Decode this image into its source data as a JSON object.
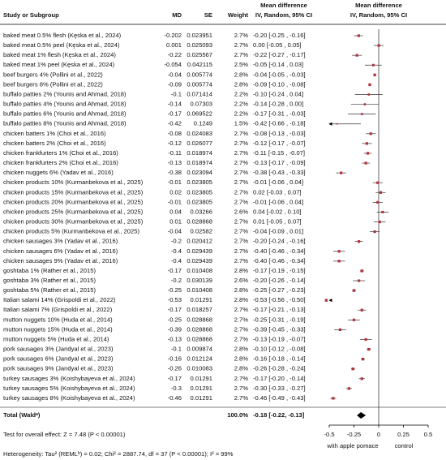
{
  "chart_data": {
    "type": "forest",
    "headers": {
      "study": "Study or Subgroup",
      "md": "MD",
      "se": "SE",
      "weight": "Weight",
      "ci_title": "Mean difference",
      "ci_sub": "IV, Random, 95% CI",
      "plot_title": "Mean difference",
      "plot_sub": "IV, Random, 95% CI"
    },
    "studies": [
      "baked meat 0.5% flesh (Kęska et al., 2024)",
      "baked meat 0.5% peel (Kęska et al., 2024)",
      "baked meat 1% flesh (Kęska et al., 2024)",
      "baked meat 1% peel (Kęska et al., 2024)",
      "beef burgers 4% (Pollini et al., 2022)",
      "beef burgers 8% (Pollini et al., 2022)",
      "buffalo patties 2% (Younis and Ahmad, 2018)",
      "buffalo patties 4% (Younis and Ahmad, 2018)",
      "buffalo patties 6% (Younis and Ahmad, 2018)",
      "buffalo patties 8% (Younis and Ahmad, 2018)",
      "chicken batters 1% (Choi et al., 2016)",
      "chicken batters 2% (Choi et al., 2016)",
      "chicken frankfurters 1% (Choi et al., 2016)",
      "chicken frankfurters 2% (Choi et al., 2016)",
      "chicken nuggets 6% (Yadav et al., 2016)",
      "chicken products 10% (Kurmanbekova et al., 2025)",
      "chicken products 15% (Kurmanbekova et al., 2025)",
      "chicken products 20% (Kurmanbekova et al., 2025)",
      "chicken products 25% (Kurmanbekova et al., 2025)",
      "chicken products 30% (Kurmanbekova et al., 2025)",
      "chicken products 5% (Kurmanbekova et al., 2025)",
      "chicken sausages 3% (Yadav et al., 2016)",
      "chicken sausages 6% (Yadav et al., 2016)",
      "chicken sausages 9% (Yadav et al., 2016)",
      "goshtaba 1% (Rather et al., 2015)",
      "goshtaba 3% (Rather et al., 2015)",
      "goshtaba 5% (Rather et al., 2015)",
      "Italian salami 14% (Grispoldi et al., 2022)",
      "Italian salami 7% (Grispoldi et al., 2022)",
      "mutton nuggets 10% (Huda et al., 2014)",
      "mutton nuggets 15% (Huda et al., 2014)",
      "mutton nuggets 5% (Huda et al., 2014)",
      "pork sausages 3% (Jandyal et al., 2023)",
      "pork sausages 6% (Jandyal et al., 2023)",
      "pork sausages 9% (Jandyal et al., 2023)",
      "turkey sausages 3% (Koishybayeva et al., 2024)",
      "turkey sausages 5% (Koishybayeva et al., 2024)",
      "turkey sausages 8% (Koishybayeva et al., 2024)"
    ],
    "md": [
      -0.202,
      0.001,
      -0.22,
      -0.054,
      -0.04,
      -0.09,
      -0.1,
      -0.14,
      -0.17,
      -0.42,
      -0.08,
      -0.12,
      -0.11,
      -0.13,
      -0.38,
      -0.01,
      0.02,
      -0.01,
      0.04,
      0.01,
      -0.04,
      -0.2,
      -0.4,
      -0.4,
      -0.17,
      -0.2,
      -0.25,
      -0.53,
      -0.17,
      -0.25,
      -0.39,
      -0.13,
      -0.1,
      -0.16,
      -0.26,
      -0.17,
      -0.3,
      -0.46
    ],
    "se": [
      0.023951,
      0.025093,
      0.025567,
      0.042115,
      0.005774,
      0.005774,
      0.071414,
      0.07303,
      0.069522,
      0.1249,
      0.024083,
      0.026077,
      0.018974,
      0.018974,
      0.023094,
      0.023805,
      0.023805,
      0.023805,
      0.03266,
      0.028868,
      0.02582,
      0.020412,
      0.029439,
      0.029439,
      0.010408,
      0.030139,
      0.010408,
      0.01291,
      0.018257,
      0.028868,
      0.028868,
      0.028868,
      0.009874,
      0.012124,
      0.010083,
      0.01291,
      0.01291,
      0.01291
    ],
    "weights": [
      2.7,
      2.7,
      2.7,
      2.5,
      2.8,
      2.8,
      2.2,
      2.2,
      2.2,
      1.5,
      2.7,
      2.7,
      2.7,
      2.7,
      2.7,
      2.7,
      2.7,
      2.7,
      2.6,
      2.7,
      2.7,
      2.7,
      2.7,
      2.7,
      2.8,
      2.6,
      2.8,
      2.8,
      2.7,
      2.7,
      2.7,
      2.7,
      2.8,
      2.8,
      2.8,
      2.7,
      2.7,
      2.7
    ],
    "weight_labels": [
      "2.7%",
      "2.7%",
      "2.7%",
      "2.5%",
      "2.8%",
      "2.8%",
      "2.2%",
      "2.2%",
      "2.2%",
      "1.5%",
      "2.7%",
      "2.7%",
      "2.7%",
      "2.7%",
      "2.7%",
      "2.7%",
      "2.7%",
      "2.7%",
      "2.6%",
      "2.7%",
      "2.7%",
      "2.7%",
      "2.7%",
      "2.7%",
      "2.8%",
      "2.6%",
      "2.8%",
      "2.8%",
      "2.7%",
      "2.7%",
      "2.7%",
      "2.7%",
      "2.8%",
      "2.8%",
      "2.8%",
      "2.7%",
      "2.7%",
      "2.7%"
    ],
    "ci_lower": [
      -0.25,
      -0.05,
      -0.27,
      -0.14,
      -0.05,
      -0.1,
      -0.24,
      -0.28,
      -0.31,
      -0.66,
      -0.13,
      -0.17,
      -0.15,
      -0.17,
      -0.43,
      -0.06,
      -0.03,
      -0.06,
      -0.02,
      -0.05,
      -0.09,
      -0.24,
      -0.46,
      -0.46,
      -0.19,
      -0.26,
      -0.27,
      -0.56,
      -0.21,
      -0.31,
      -0.45,
      -0.19,
      -0.12,
      -0.18,
      -0.28,
      -0.2,
      -0.33,
      -0.49
    ],
    "ci_upper": [
      -0.16,
      0.05,
      -0.17,
      0.03,
      -0.03,
      -0.08,
      0.04,
      0.0,
      -0.03,
      -0.18,
      -0.03,
      -0.07,
      -0.07,
      -0.09,
      -0.33,
      0.04,
      0.07,
      0.04,
      0.1,
      0.07,
      0.01,
      -0.16,
      -0.34,
      -0.34,
      -0.15,
      -0.14,
      -0.23,
      -0.5,
      -0.13,
      -0.19,
      -0.33,
      -0.07,
      -0.08,
      -0.14,
      -0.24,
      -0.14,
      -0.27,
      -0.43
    ],
    "ci_labels": [
      "-0.20 [-0.25 , -0.16]",
      "0.00 [-0.05 , 0.05]",
      "-0.22 [-0.27 , -0.17]",
      "-0.05 [-0.14 , 0.03]",
      "-0.04 [-0.05 , -0.03]",
      "-0.09 [-0.10 , -0.08]",
      "-0.10 [-0.24 , 0.04]",
      "-0.14 [-0.28 , 0.00]",
      "-0.17 [-0.31 , -0.03]",
      "-0.42 [-0.66 , -0.18]",
      "-0.08 [-0.13 , -0.03]",
      "-0.12 [-0.17 , -0.07]",
      "-0.11 [-0.15 , -0.07]",
      "-0.13 [-0.17 , -0.09]",
      "-0.38 [-0.43 , -0.33]",
      "-0.01 [-0.06 , 0.04]",
      "0.02 [-0.03 , 0.07]",
      "-0.01 [-0.06 , 0.04]",
      "0.04 [-0.02 , 0.10]",
      "0.01 [-0.05 , 0.07]",
      "-0.04 [-0.09 , 0.01]",
      "-0.20 [-0.24 , -0.16]",
      "-0.40 [-0.46 , -0.34]",
      "-0.40 [-0.46 , -0.34]",
      "-0.17 [-0.19 , -0.15]",
      "-0.20 [-0.26 , -0.14]",
      "-0.25 [-0.27 , -0.23]",
      "-0.53 [-0.56 , -0.50]",
      "-0.17 [-0.21 , -0.13]",
      "-0.25 [-0.31 , -0.19]",
      "-0.39 [-0.45 , -0.33]",
      "-0.13 [-0.19 , -0.07]",
      "-0.10 [-0.12 , -0.08]",
      "-0.16 [-0.18 , -0.14]",
      "-0.26 [-0.28 , -0.24]",
      "-0.17 [-0.20 , -0.14]",
      "-0.30 [-0.33 , -0.27]",
      "-0.46 [-0.49 , -0.43]"
    ],
    "total": {
      "label": "Total (Waldᵃ)",
      "weight_label": "100.0%",
      "md": -0.18,
      "ci_lower": -0.22,
      "ci_upper": -0.13,
      "ci_label": "-0.18 [-0.22, -0.13]"
    },
    "overall_test": "Test for overall effect: Z = 7.48 (P < 0.00001)",
    "heterogeneity": "Heterogeneity: Tau² (REMLᵇ) = 0.02; Chi² = 2887.74, df = 37 (P < 0.00001); I² = 99%",
    "xlim": [
      -0.5,
      0.5
    ],
    "xticks": [
      -0.5,
      -0.25,
      0,
      0.25,
      0.5
    ],
    "favours_left": "with apple pomace",
    "favours_right": "control",
    "marker_color": "#b2323f",
    "diamond_color": "#000000"
  }
}
